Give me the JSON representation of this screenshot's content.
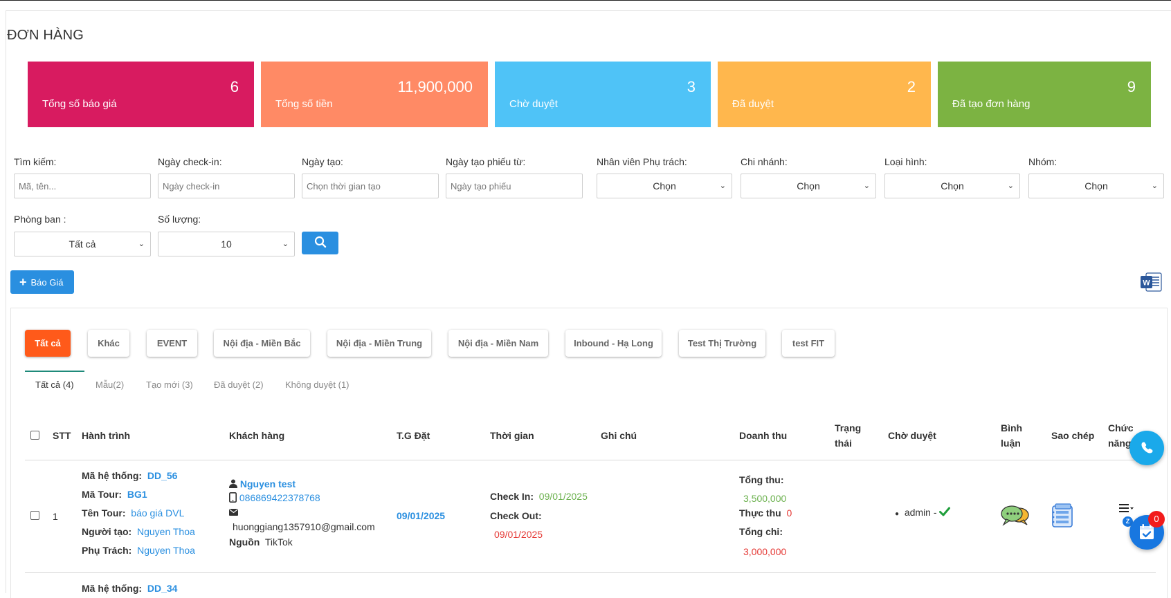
{
  "page": {
    "title": "ĐƠN HÀNG"
  },
  "stats": [
    {
      "value": "6",
      "label": "Tổng số báo giá",
      "color": "#d81b60"
    },
    {
      "value": "11,900,000",
      "label": "Tổng số tiền",
      "color": "#ff8a65"
    },
    {
      "value": "3",
      "label": "Chờ duyệt",
      "color": "#4fc3f7"
    },
    {
      "value": "2",
      "label": "Đã duyệt",
      "color": "#ffb74d"
    },
    {
      "value": "9",
      "label": "Đã tạo đơn hàng",
      "color": "#7cb342"
    }
  ],
  "filters": {
    "search": {
      "label": "Tìm kiếm:",
      "placeholder": "Mã, tên..."
    },
    "checkin": {
      "label": "Ngày check-in:",
      "placeholder": "Ngày check-in"
    },
    "created": {
      "label": "Ngày tạo:",
      "placeholder": "Chọn thời gian tạo"
    },
    "ticket_from": {
      "label": "Ngày tạo phiếu từ:",
      "placeholder": "Ngày tạo phiếu"
    },
    "staff": {
      "label": "Nhân viên Phụ trách:",
      "value": "Chọn"
    },
    "branch": {
      "label": "Chi nhánh:",
      "value": "Chọn"
    },
    "type": {
      "label": "Loại hình:",
      "value": "Chọn"
    },
    "group": {
      "label": "Nhóm:",
      "value": "Chọn"
    },
    "department": {
      "label": "Phòng ban :",
      "value": "Tất cả"
    },
    "quantity": {
      "label": "Số lượng:",
      "value": "10"
    }
  },
  "actions": {
    "add_label": "Báo Giá"
  },
  "category_tabs": [
    "Tất cả",
    "Khác",
    "EVENT",
    "Nội địa - Miền Bắc",
    "Nội địa - Miền Trung",
    "Nội địa - Miền Nam",
    "Inbound - Hạ Long",
    "Test Thị Trường",
    "test FIT"
  ],
  "status_tabs": [
    "Tất cả (4)",
    "Mẫu(2)",
    "Tạo mới (3)",
    "Đã duyệt (2)",
    "Không duyệt (1)"
  ],
  "table": {
    "headers": {
      "stt": "STT",
      "route": "Hành trình",
      "customer": "Khách hàng",
      "booking_time": "T.G Đặt",
      "time": "Thời gian",
      "note": "Ghi chú",
      "revenue": "Doanh thu",
      "status_1": "Trạng",
      "status_2": "thái",
      "pending": "Chờ duyệt",
      "comment_1": "Bình",
      "comment_2": "luận",
      "copy": "Sao chép",
      "func_1": "Chức",
      "func_2": "năng"
    },
    "labels": {
      "system_code": "Mã hệ thống:",
      "tour_code": "Mã Tour:",
      "tour_name": "Tên Tour:",
      "creator": "Người tạo:",
      "in_charge": "Phụ Trách:",
      "source": "Nguồn",
      "check_in": "Check In:",
      "check_out": "Check Out:",
      "total_income": "Tổng thu:",
      "actual_income": "Thực thu",
      "total_expense": "Tổng chi:"
    },
    "rows": [
      {
        "stt": "1",
        "system_code": "DD_56",
        "tour_code": "BG1",
        "tour_name": "báo giá DVL",
        "creator": "Nguyen Thoa",
        "in_charge": "Nguyen Thoa",
        "customer_name": "Nguyen test",
        "phone": "086869422378768",
        "email": "huonggiang1357910@gmail.com",
        "source": "TikTok",
        "booking_date": "09/01/2025",
        "check_in": "09/01/2025",
        "check_out": "09/01/2025",
        "total_income": "3,500,000",
        "actual_income": "0",
        "total_expense": "3,000,000",
        "approver": "admin -"
      },
      {
        "system_code": "DD_34"
      }
    ]
  },
  "floating": {
    "notification_count": "0"
  }
}
